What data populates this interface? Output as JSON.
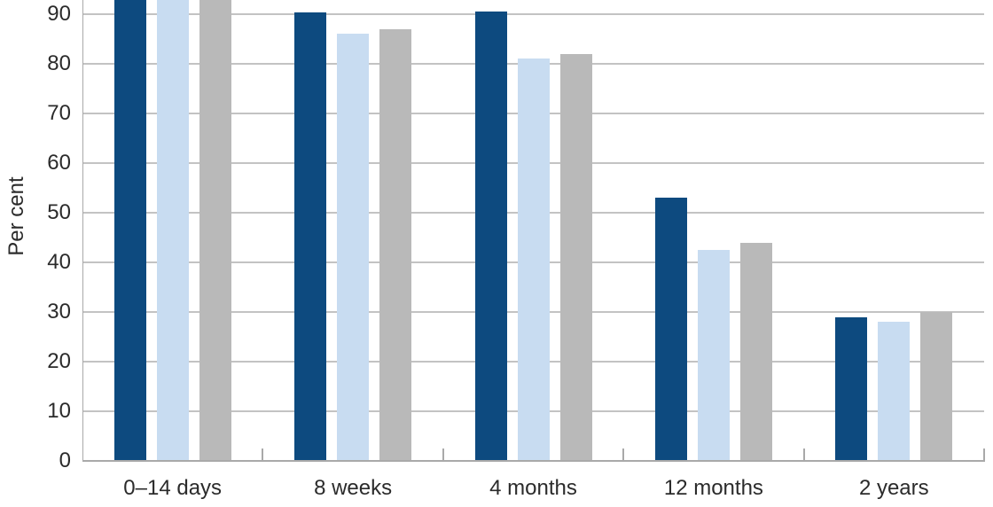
{
  "colors": {
    "background": "#ffffff",
    "bar_dark_blue": "#0d4a7f",
    "bar_light_blue": "#c8dcf1",
    "bar_grey": "#b9b9b9",
    "gridline": "#c3c3c3",
    "axis": "#a9a9a9",
    "text": "#2b2b2b"
  },
  "chart_data": {
    "type": "bar",
    "title": "",
    "xlabel": "",
    "ylabel": "Per cent",
    "categories": [
      "0–14 days",
      "8 weeks",
      "4 months",
      "12 months",
      "2 years"
    ],
    "series": [
      {
        "name": "dark blue",
        "color": "#0d4a7f",
        "values": [
          null,
          90.3,
          90.5,
          53,
          29
        ]
      },
      {
        "name": "light blue",
        "color": "#c8dcf1",
        "values": [
          null,
          86,
          81,
          42.5,
          28
        ]
      },
      {
        "name": "grey",
        "color": "#b9b9b9",
        "values": [
          null,
          87,
          82,
          44,
          30
        ]
      }
    ],
    "y_ticks": [
      0,
      10,
      20,
      30,
      40,
      50,
      60,
      70,
      80,
      90
    ],
    "ylim_visible": [
      0,
      92.9
    ],
    "grid": "horizontal gridlines every 10 units",
    "clipped_top_categories": [
      "0–14 days"
    ],
    "note": "Chart is cropped at the top edge; all three bars in the first category extend past the visible top (values above ~93)."
  }
}
